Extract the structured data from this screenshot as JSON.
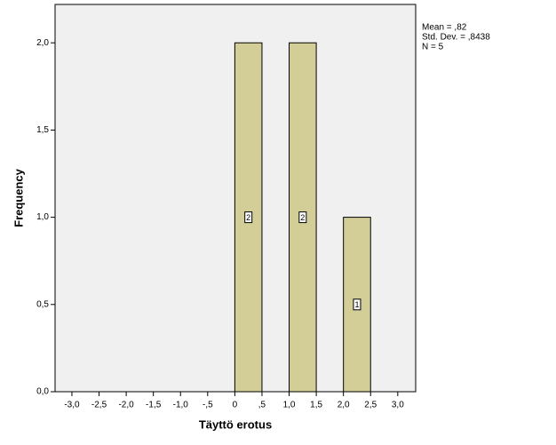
{
  "chart_data": {
    "type": "histogram",
    "x_label": "Täyttö erotus",
    "y_label": "Frequency",
    "bins": [
      0,
      0.5,
      1,
      1.5,
      2,
      2.5
    ],
    "values": [
      2,
      0,
      2,
      0,
      1
    ],
    "color": "#d3ce97",
    "plot_background": "#f0f0f0",
    "xlim": [
      -3.31,
      3.33
    ],
    "ylim": [
      0,
      2.22
    ],
    "xticks": [
      {
        "value": -3,
        "label": "-3,0"
      },
      {
        "value": -2.5,
        "label": "-2,5"
      },
      {
        "value": -2,
        "label": "-2,0"
      },
      {
        "value": -1.5,
        "label": "-1,5"
      },
      {
        "value": -1,
        "label": "-1,0"
      },
      {
        "value": -0.5,
        "label": "-,5"
      },
      0,
      {
        "value": 0.5,
        "label": ",5"
      },
      {
        "value": 1,
        "label": "1,0"
      },
      {
        "value": 1.5,
        "label": "1,5"
      },
      {
        "value": 2,
        "label": "2,0"
      },
      {
        "value": 2.5,
        "label": "2,5"
      },
      {
        "value": 3,
        "label": "3,0"
      }
    ],
    "yticks": [
      {
        "value": 0,
        "label": "0,0"
      },
      {
        "value": 0.5,
        "label": "0,5"
      },
      {
        "value": 1,
        "label": "1,0"
      },
      {
        "value": 1.5,
        "label": "1,5"
      },
      {
        "value": 2,
        "label": "2,0"
      }
    ],
    "annotations": [
      "Mean = ,82",
      "Std. Dev. = ,8438",
      "N = 5"
    ]
  }
}
